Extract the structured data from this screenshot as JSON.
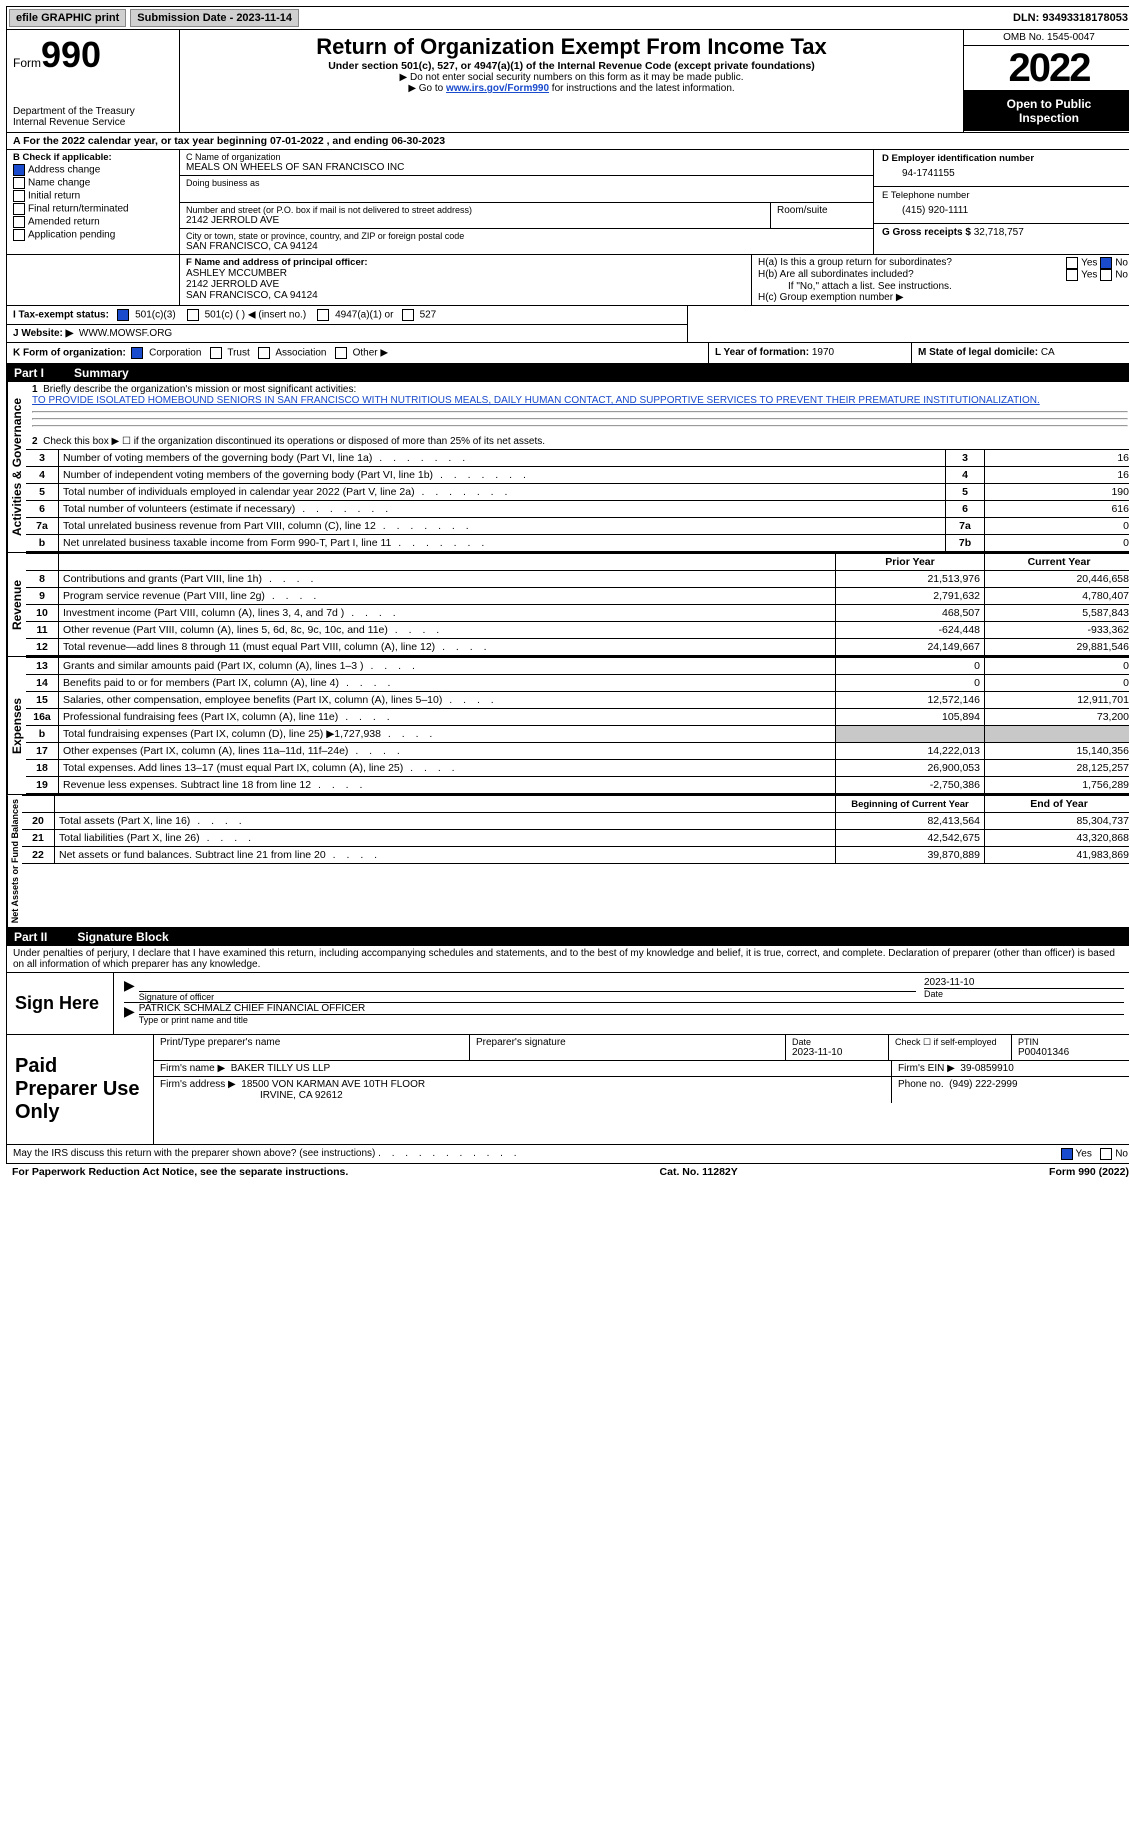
{
  "top": {
    "efile": "efile GRAPHIC print",
    "submission": "Submission Date - 2023-11-14",
    "dln": "DLN: 93493318178053"
  },
  "header": {
    "form_prefix": "Form",
    "form_no": "990",
    "dept": "Department of the Treasury",
    "irs": "Internal Revenue Service",
    "title": "Return of Organization Exempt From Income Tax",
    "sub": "Under section 501(c), 527, or 4947(a)(1) of the Internal Revenue Code (except private foundations)",
    "note1": "▶ Do not enter social security numbers on this form as it may be made public.",
    "note2_pre": "▶ Go to ",
    "note2_link": "www.irs.gov/Form990",
    "note2_post": " for instructions and the latest information.",
    "omb": "OMB No. 1545-0047",
    "year": "2022",
    "inspect1": "Open to Public",
    "inspect2": "Inspection"
  },
  "a_line": "A For the 2022 calendar year, or tax year beginning 07-01-2022    , and ending 06-30-2023",
  "b": {
    "label": "B Check if applicable:",
    "addr": "Address change",
    "name": "Name change",
    "initial": "Initial return",
    "final": "Final return/terminated",
    "amend": "Amended return",
    "app": "Application pending"
  },
  "c": {
    "label": "C Name of organization",
    "org": "MEALS ON WHEELS OF SAN FRANCISCO INC",
    "dba": "Doing business as",
    "street_label": "Number and street (or P.O. box if mail is not delivered to street address)",
    "room": "Room/suite",
    "street": "2142 JERROLD AVE",
    "city_label": "City or town, state or province, country, and ZIP or foreign postal code",
    "city": "SAN FRANCISCO, CA  94124"
  },
  "d": {
    "label": "D Employer identification number",
    "val": "94-1741155"
  },
  "e": {
    "label": "E Telephone number",
    "val": "(415) 920-1111"
  },
  "g": {
    "label": "G Gross receipts $",
    "val": "32,718,757"
  },
  "f": {
    "label": "F  Name and address of principal officer:",
    "name": "ASHLEY MCCUMBER",
    "addr1": "2142 JERROLD AVE",
    "addr2": "SAN FRANCISCO, CA  94124"
  },
  "h": {
    "a": "H(a)  Is this a group return for subordinates?",
    "b": "H(b)  Are all subordinates included?",
    "bnote": "If \"No,\" attach a list. See instructions.",
    "c": "H(c)  Group exemption number ▶",
    "yes": "Yes",
    "no": "No"
  },
  "i": {
    "label": "I  Tax-exempt status:",
    "o501c3": "501(c)(3)",
    "o501c": "501(c) (  ) ◀ (insert no.)",
    "o4947": "4947(a)(1) or",
    "o527": "527"
  },
  "j": {
    "label": "J  Website: ▶",
    "val": "WWW.MOWSF.ORG"
  },
  "k": {
    "label": "K Form of organization:",
    "corp": "Corporation",
    "trust": "Trust",
    "assoc": "Association",
    "other": "Other ▶"
  },
  "l": {
    "label": "L Year of formation:",
    "val": "1970"
  },
  "m": {
    "label": "M State of legal domicile:",
    "val": "CA"
  },
  "part1": {
    "num": "Part I",
    "title": "Summary"
  },
  "p1": {
    "l1a": "Briefly describe the organization's mission or most significant activities:",
    "l1b": "TO PROVIDE ISOLATED HOMEBOUND SENIORS IN SAN FRANCISCO WITH NUTRITIOUS MEALS, DAILY HUMAN CONTACT, AND SUPPORTIVE SERVICES TO PREVENT THEIR PREMATURE INSTITUTIONALIZATION.",
    "l2": "Check this box ▶ ☐ if the organization discontinued its operations or disposed of more than 25% of its net assets.",
    "rows_small": [
      {
        "n": "3",
        "t": "Number of voting members of the governing body (Part VI, line 1a)",
        "k": "3",
        "v": "16"
      },
      {
        "n": "4",
        "t": "Number of independent voting members of the governing body (Part VI, line 1b)",
        "k": "4",
        "v": "16"
      },
      {
        "n": "5",
        "t": "Total number of individuals employed in calendar year 2022 (Part V, line 2a)",
        "k": "5",
        "v": "190"
      },
      {
        "n": "6",
        "t": "Total number of volunteers (estimate if necessary)",
        "k": "6",
        "v": "616"
      },
      {
        "n": "7a",
        "t": "Total unrelated business revenue from Part VIII, column (C), line 12",
        "k": "7a",
        "v": "0"
      },
      {
        "n": "b",
        "t": "Net unrelated business taxable income from Form 990-T, Part I, line 11",
        "k": "7b",
        "v": "0"
      }
    ],
    "col_prior": "Prior Year",
    "col_curr": "Current Year",
    "revenue": [
      {
        "n": "8",
        "t": "Contributions and grants (Part VIII, line 1h)",
        "p": "21,513,976",
        "c": "20,446,658"
      },
      {
        "n": "9",
        "t": "Program service revenue (Part VIII, line 2g)",
        "p": "2,791,632",
        "c": "4,780,407"
      },
      {
        "n": "10",
        "t": "Investment income (Part VIII, column (A), lines 3, 4, and 7d )",
        "p": "468,507",
        "c": "5,587,843"
      },
      {
        "n": "11",
        "t": "Other revenue (Part VIII, column (A), lines 5, 6d, 8c, 9c, 10c, and 11e)",
        "p": "-624,448",
        "c": "-933,362"
      },
      {
        "n": "12",
        "t": "Total revenue—add lines 8 through 11 (must equal Part VIII, column (A), line 12)",
        "p": "24,149,667",
        "c": "29,881,546"
      }
    ],
    "expenses": [
      {
        "n": "13",
        "t": "Grants and similar amounts paid (Part IX, column (A), lines 1–3 )",
        "p": "0",
        "c": "0"
      },
      {
        "n": "14",
        "t": "Benefits paid to or for members (Part IX, column (A), line 4)",
        "p": "0",
        "c": "0"
      },
      {
        "n": "15",
        "t": "Salaries, other compensation, employee benefits (Part IX, column (A), lines 5–10)",
        "p": "12,572,146",
        "c": "12,911,701"
      },
      {
        "n": "16a",
        "t": "Professional fundraising fees (Part IX, column (A), line 11e)",
        "p": "105,894",
        "c": "73,200"
      },
      {
        "n": "b",
        "t": "Total fundraising expenses (Part IX, column (D), line 25) ▶1,727,938",
        "p": "",
        "c": "",
        "grey": true
      },
      {
        "n": "17",
        "t": "Other expenses (Part IX, column (A), lines 11a–11d, 11f–24e)",
        "p": "14,222,013",
        "c": "15,140,356"
      },
      {
        "n": "18",
        "t": "Total expenses. Add lines 13–17 (must equal Part IX, column (A), line 25)",
        "p": "26,900,053",
        "c": "28,125,257"
      },
      {
        "n": "19",
        "t": "Revenue less expenses. Subtract line 18 from line 12",
        "p": "-2,750,386",
        "c": "1,756,289"
      }
    ],
    "col_beg": "Beginning of Current Year",
    "col_end": "End of Year",
    "net": [
      {
        "n": "20",
        "t": "Total assets (Part X, line 16)",
        "p": "82,413,564",
        "c": "85,304,737"
      },
      {
        "n": "21",
        "t": "Total liabilities (Part X, line 26)",
        "p": "42,542,675",
        "c": "43,320,868"
      },
      {
        "n": "22",
        "t": "Net assets or fund balances. Subtract line 21 from line 20",
        "p": "39,870,889",
        "c": "41,983,869"
      }
    ],
    "tab_act": "Activities & Governance",
    "tab_rev": "Revenue",
    "tab_exp": "Expenses",
    "tab_net": "Net Assets or Fund Balances"
  },
  "part2": {
    "num": "Part II",
    "title": "Signature Block"
  },
  "sig": {
    "decl": "Under penalties of perjury, I declare that I have examined this return, including accompanying schedules and statements, and to the best of my knowledge and belief, it is true, correct, and complete. Declaration of preparer (other than officer) is based on all information of which preparer has any knowledge.",
    "sign_here": "Sign Here",
    "sig_officer": "Signature of officer",
    "sig_date": "2023-11-10",
    "date": "Date",
    "officer": "PATRICK SCHMALZ  CHIEF FINANCIAL OFFICER",
    "type_name": "Type or print name and title",
    "paid": "Paid Preparer Use Only",
    "prep_name_lbl": "Print/Type preparer's name",
    "prep_sig_lbl": "Preparer's signature",
    "prep_date_lbl": "Date",
    "prep_date": "2023-11-10",
    "self_emp": "Check ☐ if self-employed",
    "ptin_lbl": "PTIN",
    "ptin": "P00401346",
    "firm_name_lbl": "Firm's name    ▶",
    "firm_name": "BAKER TILLY US LLP",
    "firm_ein_lbl": "Firm's EIN ▶",
    "firm_ein": "39-0859910",
    "firm_addr_lbl": "Firm's address ▶",
    "firm_addr1": "18500 VON KARMAN AVE 10TH FLOOR",
    "firm_addr2": "IRVINE, CA  92612",
    "phone_lbl": "Phone no.",
    "phone": "(949) 222-2999",
    "discuss": "May the IRS discuss this return with the preparer shown above? (see instructions)",
    "yes": "Yes",
    "no": "No"
  },
  "footer": {
    "pra": "For Paperwork Reduction Act Notice, see the separate instructions.",
    "cat": "Cat. No. 11282Y",
    "form": "Form 990 (2022)"
  }
}
